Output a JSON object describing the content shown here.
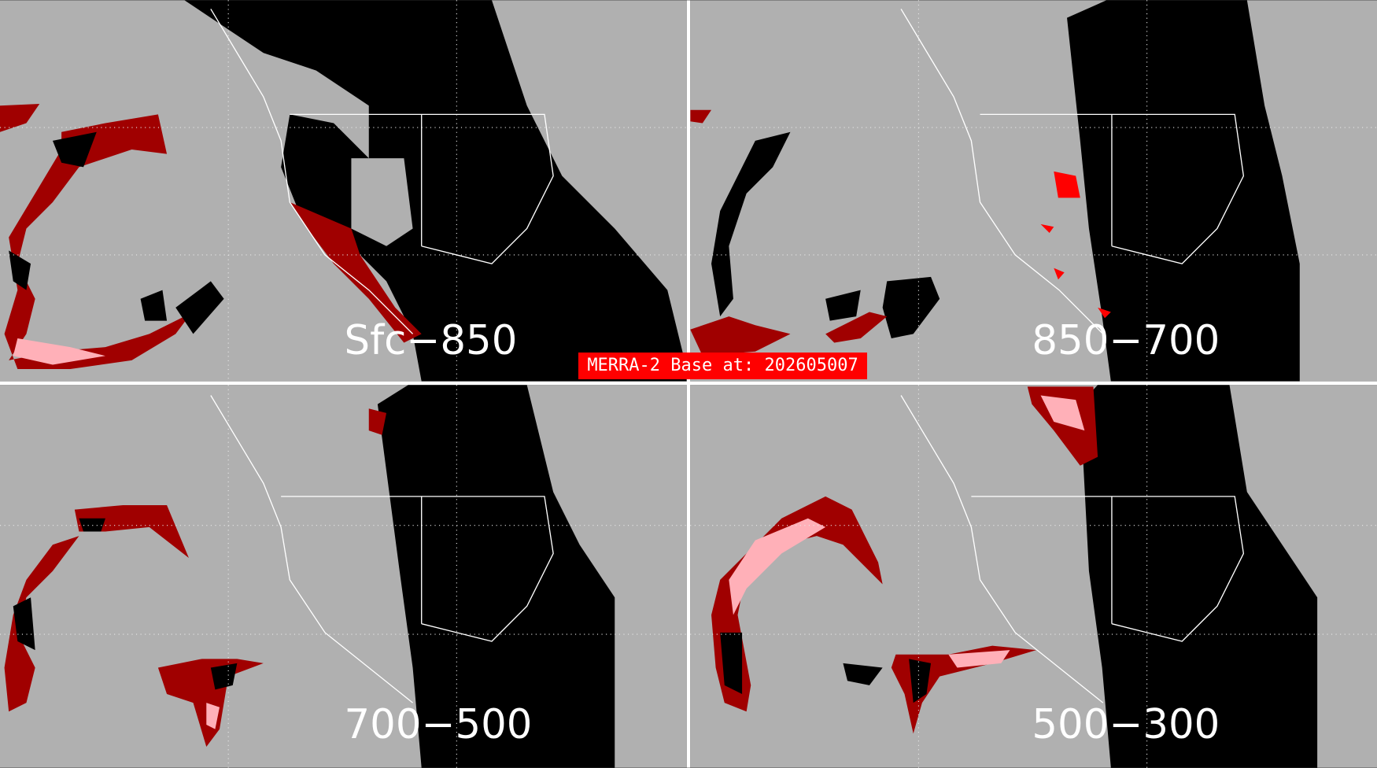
{
  "banner": {
    "text": "MERRA-2 Base at: 202605007"
  },
  "panels": [
    {
      "label": "Sfc−850"
    },
    {
      "label": "850−700"
    },
    {
      "label": "700−500"
    },
    {
      "label": "500−300"
    }
  ],
  "colors": {
    "background": "#b0b0b0",
    "mask": "#000000",
    "dark_red": "#a00000",
    "red": "#ff0000",
    "pink": "#ffb0b8",
    "divider": "#ffffff",
    "banner": "#ff0000"
  }
}
